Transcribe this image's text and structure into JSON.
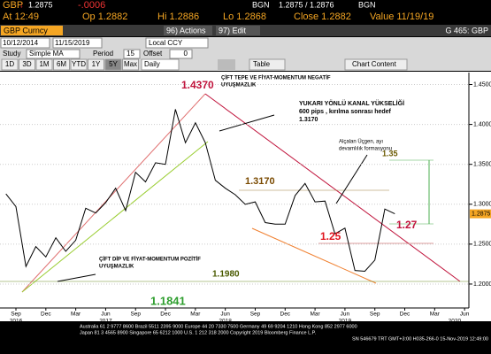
{
  "header": {
    "ticker": "GBP",
    "price": "1.2875",
    "change": "-.0006",
    "source": "BGN",
    "bid_ask": "1.2875 / 1.2876",
    "source2": "BGN",
    "at": "At 12:49",
    "open": "Op 1.2882",
    "high": "Hi 1.2886",
    "low": "Lo 1.2868",
    "close": "Close 1.2882",
    "value": "Value 11/19/19"
  },
  "toolbar": {
    "security": "GBP Curncy",
    "actions": "96) Actions",
    "edit": "97) Edit",
    "function": "G 465: GBP",
    "start": "10/12/2014",
    "end": "11/15/2019",
    "currency": "Local CCY",
    "study": "Study",
    "study_value": "Simple MA",
    "period": "Period",
    "period_value": "15",
    "offset": "Offset",
    "offset_value": "0",
    "ranges": [
      "1D",
      "3D",
      "1M",
      "6M",
      "YTD",
      "1Y",
      "5Y",
      "Max"
    ],
    "frequency": "Daily",
    "table": "Table",
    "chart_content": "Chart Content"
  },
  "chart_data": {
    "type": "line",
    "color": "#000000",
    "x": [
      "2016-08",
      "2016-09",
      "2016-10",
      "2016-11",
      "2016-12",
      "2017-01",
      "2017-02",
      "2017-03",
      "2017-04",
      "2017-05",
      "2017-06",
      "2017-07",
      "2017-08",
      "2017-09",
      "2017-10",
      "2017-11",
      "2017-12",
      "2018-01",
      "2018-02",
      "2018-03",
      "2018-04",
      "2018-05",
      "2018-06",
      "2018-07",
      "2018-08",
      "2018-09",
      "2018-10",
      "2018-11",
      "2018-12",
      "2019-01",
      "2019-02",
      "2019-03",
      "2019-04",
      "2019-05",
      "2019-06",
      "2019-07",
      "2019-08",
      "2019-09",
      "2019-10",
      "2019-11"
    ],
    "values": [
      1.313,
      1.297,
      1.222,
      1.247,
      1.234,
      1.258,
      1.241,
      1.255,
      1.295,
      1.289,
      1.302,
      1.32,
      1.292,
      1.34,
      1.328,
      1.352,
      1.35,
      1.419,
      1.377,
      1.402,
      1.377,
      1.33,
      1.32,
      1.312,
      1.3,
      1.303,
      1.277,
      1.275,
      1.275,
      1.311,
      1.326,
      1.303,
      1.304,
      1.263,
      1.27,
      1.217,
      1.216,
      1.23,
      1.294,
      1.288
    ],
    "ylim": [
      1.17,
      1.465
    ],
    "yticks": [
      {
        "value": 1.45,
        "label": "1.4500"
      },
      {
        "value": 1.4,
        "label": "1.4000"
      },
      {
        "value": 1.35,
        "label": "1.3500"
      },
      {
        "value": 1.3,
        "label": "1.3000"
      },
      {
        "value": 1.25,
        "label": "1.2500"
      },
      {
        "value": 1.2,
        "label": "1.2000"
      }
    ],
    "xticks": [
      {
        "value": "2016-09",
        "label": "Sep"
      },
      {
        "value": "2016-12",
        "label": "Dec"
      },
      {
        "value": "2017-03",
        "label": "Mar"
      },
      {
        "value": "2017-06",
        "label": "Jun"
      },
      {
        "value": "2017-09",
        "label": "Sep"
      },
      {
        "value": "2017-12",
        "label": "Dec"
      },
      {
        "value": "2018-03",
        "label": "Mar"
      },
      {
        "value": "2018-06",
        "label": "Jun"
      },
      {
        "value": "2018-09",
        "label": "Sep"
      },
      {
        "value": "2018-12",
        "label": "Dec"
      },
      {
        "value": "2019-03",
        "label": "Mar"
      },
      {
        "value": "2019-06",
        "label": "Jun"
      },
      {
        "value": "2019-09",
        "label": "Sep"
      },
      {
        "value": "2019-12",
        "label": "Dec"
      },
      {
        "value": "2020-03",
        "label": "Mar"
      },
      {
        "value": "2020-06",
        "label": "Jun"
      }
    ],
    "years": [
      {
        "value": "2016-09",
        "label": "2016"
      },
      {
        "value": "2017-06",
        "label": "2017"
      },
      {
        "value": "2018-06",
        "label": "2018"
      },
      {
        "value": "2019-06",
        "label": "2019"
      },
      {
        "value": "2020-05",
        "label": "2020"
      }
    ],
    "annotations": [
      {
        "text": [
          "1.4370"
        ],
        "color": "#c0143c"
      },
      {
        "text": [
          "ÇİFT TEPE VE FİYAT-MOMENTUM NEGATİF",
          "UYUŞMAZLIK"
        ],
        "color": "#000000"
      },
      {
        "text": [
          "YUKARI YÖNLÜ KANAL YÜKSELİĞİ",
          "600 pips , kırılma sonrası hedef",
          "1.3170"
        ],
        "color": "#000000"
      },
      {
        "text": [
          "Alçalan Üçgen, ayı",
          "devamlılık formasyonu"
        ],
        "color": "#000000"
      },
      {
        "text": [
          "1.35"
        ],
        "color": "#6b5a00"
      },
      {
        "text": [
          "1.3170"
        ],
        "color": "#7a4a00"
      },
      {
        "text": [
          "1.27"
        ],
        "color": "#c0143c"
      },
      {
        "text": [
          "1.25"
        ],
        "color": "#e0141e"
      },
      {
        "text": [
          "1.1980"
        ],
        "color": "#4a5a00"
      },
      {
        "text": [
          "1.1841"
        ],
        "color": "#2e9e2e"
      },
      {
        "text": [
          "ÇİFT DİP VE FİYAT-MOMENTUM POZİTİF",
          "UYUŞMAZLIK"
        ],
        "color": "#000000"
      }
    ]
  },
  "footer": [
    "Australia 61 2 9777 8600 Brazil 5511 2395 9000 Europe 44 20 7330 7500 Germany 49 69 9204 1210 Hong Kong 852 2977 6000",
    "Japan 81 3 4565 8900      Singapore 65 6212 1000      U.S. 1 212 318 2000      Copyright 2019 Bloomberg Finance L.P.",
    "SN 546679 TRT  GMT+3:00 H035-266-0 15-Nov-2019 12:49:00"
  ]
}
